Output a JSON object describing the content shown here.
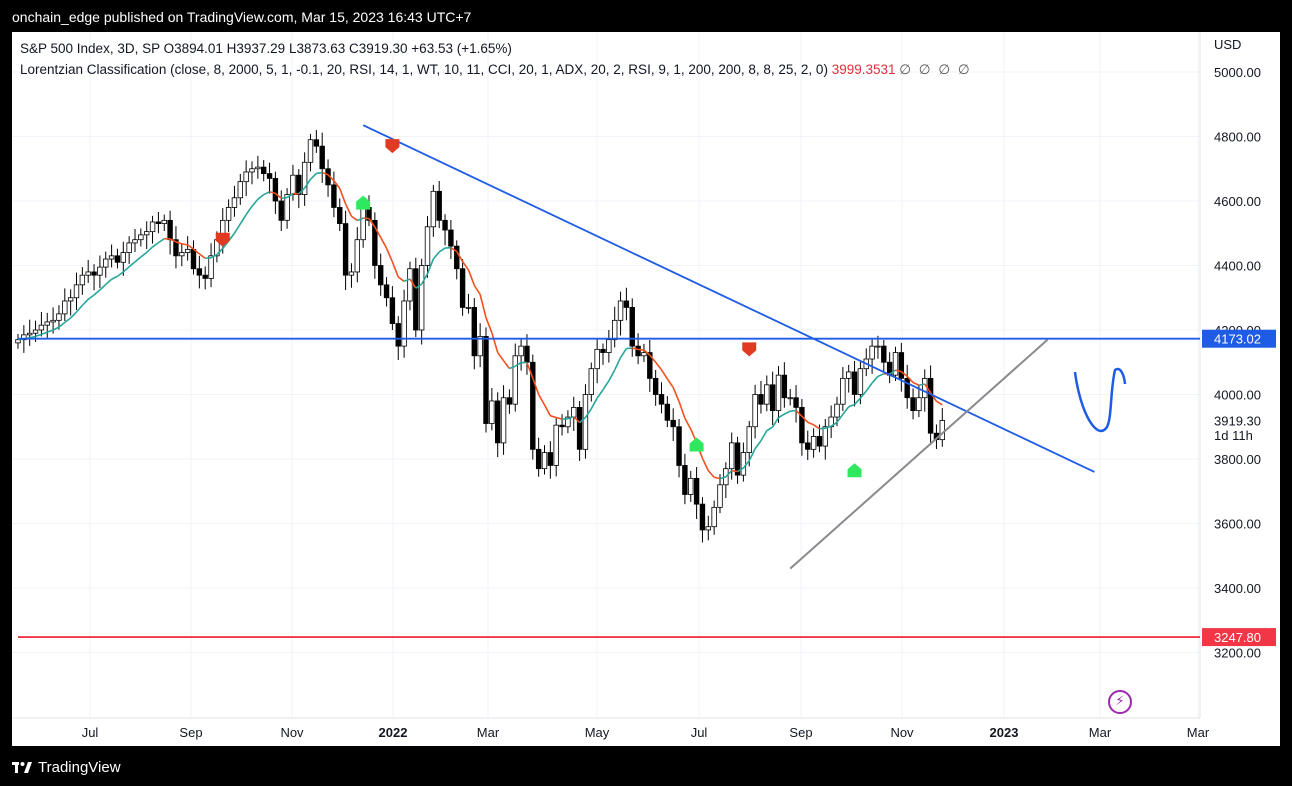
{
  "header": {
    "publisher": "onchain_edge published on TradingView.com, Mar 15, 2023 16:43 UTC+7"
  },
  "legend": {
    "line1": "S&P 500 Index, 3D, SP  O3894.01  H3937.29  L3873.63  C3919.30  +63.53 (+1.65%)",
    "line2_label": "Lorentzian Classification (close, 8, 2000, 5, 1, -0.1, 20, RSI, 14, 1, WT, 10, 11, CCI, 20, 1, ADX, 20, 2, RSI, 9, 1, 200, 200, 8, 8, 25, 2, 0)",
    "line2_value": "3999.3531",
    "line2_extra": "∅ ∅ ∅ ∅"
  },
  "footer": {
    "brand": "TradingView"
  },
  "colors": {
    "up": "#ffffff",
    "down": "#000000",
    "teal": "#26a69a",
    "orange": "#f2501e",
    "blue": "#1e5ce6",
    "gray": "#8a8a8f",
    "red": "#f23645",
    "buy": "#2ee85f",
    "sell": "#e03a22"
  },
  "chart_data": {
    "type": "candlestick",
    "currency": "USD",
    "ylim": [
      3200,
      5000
    ],
    "y_ticks": [
      "5000.00",
      "4800.00",
      "4600.00",
      "4400.00",
      "4200.00",
      "4000.00",
      "3800.00",
      "3600.00",
      "3400.00",
      "3200.00"
    ],
    "x_ticks": [
      "Jul",
      "Sep",
      "Nov",
      "2022",
      "Mar",
      "May",
      "Jul",
      "Sep",
      "Nov",
      "2023",
      "Mar",
      "Mar"
    ],
    "price_labels": [
      {
        "text": "4173.02",
        "value": 4173.02,
        "color": "#1e5ce6"
      },
      {
        "text": "3247.80",
        "value": 3247.8,
        "color": "#f23645"
      },
      {
        "text": "3919.30",
        "value": 3919.3,
        "color": "plain"
      },
      {
        "text": "1d 11h",
        "value": 3875,
        "color": "plain"
      }
    ],
    "candles_close": [
      4170,
      4185,
      4190,
      4200,
      4215,
      4225,
      4230,
      4250,
      4290,
      4300,
      4340,
      4370,
      4380,
      4370,
      4395,
      4420,
      4430,
      4410,
      4440,
      4470,
      4480,
      4495,
      4505,
      4535,
      4530,
      4540,
      4480,
      4430,
      4440,
      4450,
      4390,
      4370,
      4360,
      4430,
      4480,
      4540,
      4580,
      4610,
      4660,
      4690,
      4700,
      4705,
      4685,
      4670,
      4600,
      4540,
      4620,
      4680,
      4620,
      4720,
      4790,
      4770,
      4700,
      4650,
      4580,
      4530,
      4370,
      4380,
      4480,
      4580,
      4540,
      4400,
      4340,
      4300,
      4220,
      4150,
      4290,
      4390,
      4200,
      4400,
      4520,
      4630,
      4540,
      4510,
      4460,
      4390,
      4270,
      4270,
      4120,
      4180,
      3910,
      3980,
      3850,
      3990,
      3970,
      4120,
      4150,
      4100,
      3830,
      3770,
      3820,
      3780,
      3905,
      3900,
      3930,
      3960,
      3830,
      4000,
      4080,
      4140,
      4130,
      4170,
      4230,
      4290,
      4270,
      4150,
      4120,
      4130,
      4050,
      4000,
      3970,
      3920,
      3900,
      3780,
      3690,
      3740,
      3660,
      3580,
      3590,
      3650,
      3720,
      3770,
      3850,
      3750,
      3820,
      3900,
      4000,
      3970,
      4030,
      3950,
      4060,
      3990,
      3990,
      3960,
      3850,
      3830,
      3870,
      3840,
      3900,
      3930,
      3970,
      4050,
      4070,
      4000,
      4080,
      4110,
      4150,
      4150,
      4100,
      4060,
      4130,
      4050,
      3990,
      3950,
      3990,
      4050,
      3880,
      3860,
      3919.3
    ],
    "series": [
      {
        "name": "",
        "role": "kernel-fast",
        "x_index_range": [
          0,
          164
        ]
      },
      {
        "name": "",
        "role": "kernel-slow",
        "x_index_range": [
          0,
          164
        ]
      }
    ],
    "signals": [
      {
        "type": "sell",
        "index": 35,
        "price": 4480
      },
      {
        "type": "buy",
        "index": 59,
        "price": 4595
      },
      {
        "type": "sell",
        "index": 64,
        "price": 4770
      },
      {
        "type": "buy",
        "index": 116,
        "price": 3845
      },
      {
        "type": "sell",
        "index": 125,
        "price": 4140
      },
      {
        "type": "buy",
        "index": 143,
        "price": 3765
      }
    ],
    "trendlines": [
      {
        "name": "descending resistance",
        "from": [
          59,
          4835
        ],
        "to": [
          184,
          3760
        ]
      },
      {
        "name": "ascending support",
        "from": [
          132,
          3460
        ],
        "to": [
          176,
          4170
        ]
      },
      {
        "name": "horizontal level",
        "from": [
          0,
          4173.02
        ],
        "to": [
          184,
          4173.02
        ]
      },
      {
        "name": "horizontal low",
        "from": [
          0,
          3247.8
        ],
        "to": [
          184,
          3247.8
        ]
      }
    ],
    "grid": true,
    "legend_position": "top-left"
  }
}
